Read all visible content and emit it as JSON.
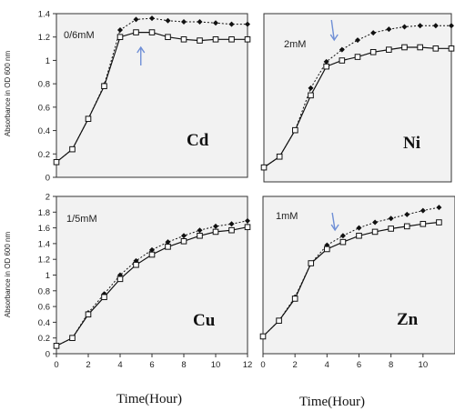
{
  "figure": {
    "ylabel": "Absorbance in OD 600 nm",
    "xlabel": "Time(Hour)"
  },
  "colors": {
    "arrow": "#6f8fd6",
    "panel_bg": "#f2f2f2",
    "frame": "#333333"
  },
  "chart_data": [
    {
      "type": "line",
      "metal": "Cd",
      "concentration": "0/6mM",
      "arrow_at": 5.3,
      "xlim": [
        0,
        12
      ],
      "ylim": [
        0,
        1.4
      ],
      "yticks": [
        0,
        0.2,
        0.4,
        0.6,
        0.8,
        1,
        1.2,
        1.4
      ],
      "ytick_labels": [
        "0",
        "0.2",
        "0.4",
        "0.6",
        "0.8",
        "1",
        "1.2",
        "1.4"
      ],
      "xticks": [],
      "series": [
        {
          "marker": "filled-diamond",
          "dashed": true,
          "x": [
            0,
            1,
            2,
            3,
            4,
            5,
            6,
            7,
            8,
            9,
            10,
            11,
            12
          ],
          "y": [
            0.13,
            0.24,
            0.5,
            0.79,
            1.26,
            1.35,
            1.36,
            1.34,
            1.33,
            1.33,
            1.32,
            1.31,
            1.31
          ]
        },
        {
          "marker": "open-square",
          "dashed": false,
          "x": [
            0,
            1,
            2,
            3,
            4,
            5,
            6,
            7,
            8,
            9,
            10,
            11,
            12
          ],
          "y": [
            0.13,
            0.24,
            0.5,
            0.78,
            1.2,
            1.24,
            1.24,
            1.2,
            1.18,
            1.17,
            1.18,
            1.18,
            1.18
          ]
        }
      ]
    },
    {
      "type": "line",
      "metal": "Ni",
      "concentration": "2mM",
      "arrow_at": 4.5,
      "xlim": [
        0,
        12
      ],
      "ylim": [
        0,
        1.4
      ],
      "yticks": [],
      "xticks": [],
      "series": [
        {
          "marker": "filled-diamond",
          "dashed": true,
          "x": [
            0,
            1,
            2,
            3,
            4,
            5,
            6,
            7,
            8,
            9,
            10,
            11,
            12
          ],
          "y": [
            0.12,
            0.21,
            0.43,
            0.78,
            1.0,
            1.1,
            1.18,
            1.24,
            1.27,
            1.29,
            1.3,
            1.3,
            1.3
          ]
        },
        {
          "marker": "open-square",
          "dashed": false,
          "x": [
            0,
            1,
            2,
            3,
            4,
            5,
            6,
            7,
            8,
            9,
            10,
            11,
            12
          ],
          "y": [
            0.12,
            0.21,
            0.43,
            0.72,
            0.96,
            1.01,
            1.04,
            1.08,
            1.1,
            1.12,
            1.12,
            1.11,
            1.11
          ]
        }
      ]
    },
    {
      "type": "line",
      "metal": "Cu",
      "concentration": "1/5mM",
      "arrow_at": null,
      "xlim": [
        0,
        12
      ],
      "ylim": [
        0,
        2
      ],
      "yticks": [
        0,
        0.2,
        0.4,
        0.6,
        0.8,
        1,
        1.2,
        1.4,
        1.6,
        1.8,
        2
      ],
      "ytick_labels": [
        "0",
        "0.2",
        "0.4",
        "0.6",
        "0.8",
        "1",
        "1.2",
        "1.4",
        "1.6",
        "1.8",
        "2"
      ],
      "xticks": [
        0,
        2,
        4,
        6,
        8,
        10,
        12
      ],
      "xtick_labels": [
        "0",
        "2",
        "4",
        "6",
        "8",
        "10",
        "12"
      ],
      "series": [
        {
          "marker": "filled-diamond",
          "dashed": true,
          "x": [
            0,
            1,
            2,
            3,
            4,
            5,
            6,
            7,
            8,
            9,
            10,
            11,
            12
          ],
          "y": [
            0.1,
            0.2,
            0.52,
            0.76,
            1.0,
            1.18,
            1.32,
            1.42,
            1.5,
            1.57,
            1.62,
            1.65,
            1.69
          ]
        },
        {
          "marker": "open-square",
          "dashed": false,
          "x": [
            0,
            1,
            2,
            3,
            4,
            5,
            6,
            7,
            8,
            9,
            10,
            11,
            12
          ],
          "y": [
            0.1,
            0.2,
            0.5,
            0.72,
            0.95,
            1.13,
            1.26,
            1.36,
            1.43,
            1.5,
            1.55,
            1.57,
            1.61
          ]
        }
      ]
    },
    {
      "type": "line",
      "metal": "Zn",
      "concentration": "1mM",
      "arrow_at": 4.5,
      "xlim": [
        0,
        12
      ],
      "ylim": [
        0,
        2
      ],
      "yticks": [],
      "xticks": [
        0,
        2,
        4,
        6,
        8,
        10
      ],
      "xtick_labels": [
        "0",
        "2",
        "4",
        "6",
        "8",
        "10"
      ],
      "series": [
        {
          "marker": "filled-diamond",
          "dashed": true,
          "x": [
            0,
            1,
            2,
            3,
            4,
            5,
            6,
            7,
            8,
            9,
            10,
            11
          ],
          "y": [
            0.22,
            0.42,
            0.72,
            1.15,
            1.38,
            1.5,
            1.6,
            1.67,
            1.72,
            1.77,
            1.82,
            1.86
          ]
        },
        {
          "marker": "open-square",
          "dashed": false,
          "x": [
            0,
            1,
            2,
            3,
            4,
            5,
            6,
            7,
            8,
            9,
            10,
            11
          ],
          "y": [
            0.22,
            0.42,
            0.7,
            1.15,
            1.33,
            1.42,
            1.5,
            1.55,
            1.59,
            1.62,
            1.65,
            1.67
          ]
        }
      ]
    }
  ]
}
